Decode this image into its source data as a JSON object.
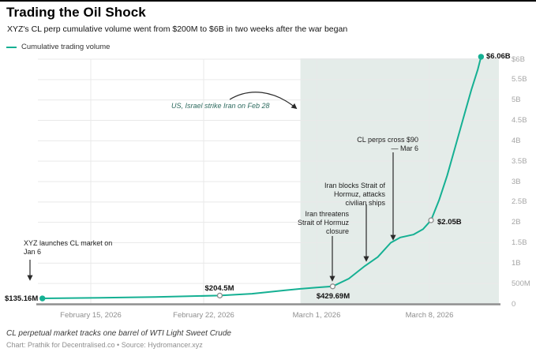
{
  "page": {
    "title": "Trading the Oil Shock",
    "subtitle": "XYZ's CL perp cumulative volume went from $200M to $6B in two weeks after the war began"
  },
  "legend": {
    "label": "Cumulative trading volume"
  },
  "colors": {
    "line": "#15b093",
    "band": "#e4ece9",
    "grid": "#e9e9e9",
    "axis": "#8f8f8f",
    "annotation_accent": "#2d6a5e",
    "arrow": "#2a2a2a"
  },
  "footer": {
    "note": "CL perpetual market tracks one barrel of WTI Light Sweet Crude",
    "credit": "Chart: Prathik for Decentralised.co • Source: Hydromancer.xyz"
  },
  "chart_data": {
    "type": "line",
    "title": "Cumulative trading volume",
    "x_axis": {
      "d0_date": "2026-02-15",
      "note": "d = days since February 15, 2026",
      "ticks": [
        {
          "label": "February 15, 2026",
          "d": 0
        },
        {
          "label": "February 22, 2026",
          "d": 7
        },
        {
          "label": "March 1, 2026",
          "d": 14
        },
        {
          "label": "March 8, 2026",
          "d": 21
        }
      ]
    },
    "y_axis": {
      "min": 0,
      "max": 6,
      "unit": "$B",
      "ticks": [
        {
          "label": "$6B",
          "v": 6
        },
        {
          "label": "5.5B",
          "v": 5.5
        },
        {
          "label": "5B",
          "v": 5
        },
        {
          "label": "4.5B",
          "v": 4.5
        },
        {
          "label": "4B",
          "v": 4
        },
        {
          "label": "3.5B",
          "v": 3.5
        },
        {
          "label": "3B",
          "v": 3
        },
        {
          "label": "2.5B",
          "v": 2.5
        },
        {
          "label": "2B",
          "v": 2
        },
        {
          "label": "1.5B",
          "v": 1.5
        },
        {
          "label": "1B",
          "v": 1
        },
        {
          "label": "500M",
          "v": 0.5
        },
        {
          "label": "0",
          "v": 0
        }
      ]
    },
    "event_band": {
      "start_day": 13
    },
    "series": [
      {
        "name": "Cumulative trading volume",
        "unit": "$B",
        "points": [
          {
            "d": -3,
            "v": 0.135
          },
          {
            "d": 0,
            "v": 0.148
          },
          {
            "d": 4,
            "v": 0.17
          },
          {
            "d": 8,
            "v": 0.2045
          },
          {
            "d": 10,
            "v": 0.25
          },
          {
            "d": 12,
            "v": 0.33
          },
          {
            "d": 13,
            "v": 0.37
          },
          {
            "d": 14,
            "v": 0.4
          },
          {
            "d": 15,
            "v": 0.4297
          },
          {
            "d": 16,
            "v": 0.62
          },
          {
            "d": 17,
            "v": 0.93
          },
          {
            "d": 17.8,
            "v": 1.15
          },
          {
            "d": 18.6,
            "v": 1.5
          },
          {
            "d": 19.2,
            "v": 1.63
          },
          {
            "d": 20,
            "v": 1.7
          },
          {
            "d": 20.6,
            "v": 1.83
          },
          {
            "d": 21.1,
            "v": 2.05
          },
          {
            "d": 21.6,
            "v": 2.55
          },
          {
            "d": 22.1,
            "v": 3.15
          },
          {
            "d": 22.6,
            "v": 3.85
          },
          {
            "d": 23.1,
            "v": 4.55
          },
          {
            "d": 23.6,
            "v": 5.25
          },
          {
            "d": 24,
            "v": 5.75
          },
          {
            "d": 24.2,
            "v": 6.06
          }
        ]
      }
    ],
    "markers": [
      {
        "d": -3,
        "v": 0.135,
        "style": "filled",
        "label": "$135.16M"
      },
      {
        "d": 8,
        "v": 0.2045,
        "style": "open",
        "label": "$204.5M"
      },
      {
        "d": 15,
        "v": 0.4297,
        "style": "open",
        "label": "$429.69M"
      },
      {
        "d": 21.1,
        "v": 2.05,
        "style": "open",
        "label": "$2.05B"
      },
      {
        "d": 24.2,
        "v": 6.06,
        "style": "filled",
        "label": "$6.06B"
      }
    ],
    "annotations": {
      "launch": "XYZ launches CL market on\nJan 6",
      "strike": "US, Israel strike Iran on Feb 28",
      "threatens": "Iran threatens\nStrait of Hormuz\nclosure",
      "blocks": "Iran blocks Strait of\nHormuz, attacks\ncivilian ships",
      "perps": "CL perps cross $90\n— Mar 6"
    }
  }
}
